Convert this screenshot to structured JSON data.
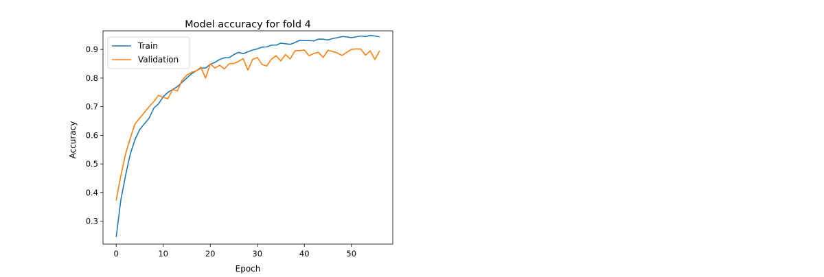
{
  "colors": {
    "train": "#1f77b4",
    "validation": "#ff7f0e"
  },
  "chart_data": {
    "type": "line",
    "title": "Model accuracy for fold 4",
    "xlabel": "Epoch",
    "ylabel": "Accuracy",
    "xlim": [
      -2.8,
      58.8
    ],
    "ylim": [
      0.22,
      0.965
    ],
    "xticks": [
      0,
      10,
      20,
      30,
      40,
      50
    ],
    "yticks": [
      0.3,
      0.4,
      0.5,
      0.6,
      0.7,
      0.8,
      0.9
    ],
    "xtick_labels": [
      "0",
      "10",
      "20",
      "30",
      "40",
      "50"
    ],
    "ytick_labels": [
      "0.3",
      "0.4",
      "0.5",
      "0.6",
      "0.7",
      "0.8",
      "0.9"
    ],
    "grid": false,
    "legend_position": "upper left",
    "x": [
      0,
      1,
      2,
      3,
      4,
      5,
      6,
      7,
      8,
      9,
      10,
      11,
      12,
      13,
      14,
      15,
      16,
      17,
      18,
      19,
      20,
      21,
      22,
      23,
      24,
      25,
      26,
      27,
      28,
      29,
      30,
      31,
      32,
      33,
      34,
      35,
      36,
      37,
      38,
      39,
      40,
      41,
      42,
      43,
      44,
      45,
      46,
      47,
      48,
      49,
      50,
      51,
      52,
      53,
      54,
      55,
      56
    ],
    "series": [
      {
        "name": "Train",
        "color": "#1f77b4",
        "values": [
          0.245,
          0.375,
          0.46,
          0.535,
          0.585,
          0.62,
          0.64,
          0.66,
          0.695,
          0.71,
          0.735,
          0.75,
          0.76,
          0.77,
          0.785,
          0.8,
          0.815,
          0.825,
          0.835,
          0.835,
          0.848,
          0.855,
          0.865,
          0.871,
          0.871,
          0.882,
          0.89,
          0.885,
          0.892,
          0.898,
          0.902,
          0.908,
          0.909,
          0.915,
          0.915,
          0.922,
          0.92,
          0.918,
          0.924,
          0.932,
          0.931,
          0.931,
          0.93,
          0.936,
          0.936,
          0.933,
          0.938,
          0.941,
          0.945,
          0.944,
          0.941,
          0.944,
          0.947,
          0.945,
          0.949,
          0.947,
          0.944
        ]
      },
      {
        "name": "Validation",
        "color": "#ff7f0e",
        "values": [
          0.372,
          0.46,
          0.535,
          0.59,
          0.64,
          0.66,
          0.68,
          0.7,
          0.718,
          0.74,
          0.733,
          0.728,
          0.76,
          0.755,
          0.792,
          0.81,
          0.82,
          0.825,
          0.838,
          0.8,
          0.85,
          0.835,
          0.845,
          0.832,
          0.85,
          0.851,
          0.858,
          0.868,
          0.828,
          0.865,
          0.872,
          0.848,
          0.842,
          0.866,
          0.878,
          0.86,
          0.882,
          0.867,
          0.895,
          0.896,
          0.898,
          0.878,
          0.886,
          0.89,
          0.872,
          0.897,
          0.893,
          0.888,
          0.879,
          0.89,
          0.9,
          0.902,
          0.901,
          0.88,
          0.895,
          0.865,
          0.895
        ]
      }
    ]
  }
}
